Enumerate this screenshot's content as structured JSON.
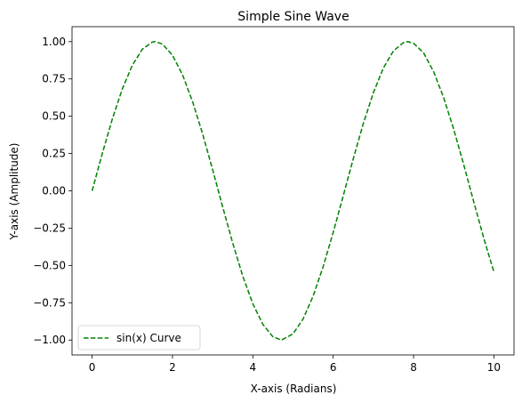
{
  "chart_data": {
    "type": "line",
    "title": "Simple Sine Wave",
    "xlabel": "X-axis (Radians)",
    "ylabel": "Y-axis (Amplitude)",
    "xlim": [
      -0.5,
      10.5
    ],
    "ylim": [
      -1.1,
      1.1
    ],
    "x_ticks": [
      0,
      2,
      4,
      6,
      8,
      10
    ],
    "x_tick_labels": [
      "0",
      "2",
      "4",
      "6",
      "8",
      "10"
    ],
    "y_ticks": [
      -1.0,
      -0.75,
      -0.5,
      -0.25,
      0.0,
      0.25,
      0.5,
      0.75,
      1.0
    ],
    "y_tick_labels": [
      "−1.00",
      "−0.75",
      "−0.50",
      "−0.25",
      "0.00",
      "0.25",
      "0.50",
      "0.75",
      "1.00"
    ],
    "grid": false,
    "legend_position": "lower-left",
    "series": [
      {
        "name": "sin(x) Curve",
        "color": "#008000",
        "line_style": "dashed",
        "x": [
          0,
          0.25,
          0.5,
          0.75,
          1.0,
          1.25,
          1.5,
          1.5708,
          1.75,
          2.0,
          2.25,
          2.5,
          2.75,
          3.0,
          3.25,
          3.5,
          3.75,
          4.0,
          4.25,
          4.5,
          4.7124,
          5.0,
          5.25,
          5.5,
          5.75,
          6.0,
          6.25,
          6.5,
          6.75,
          7.0,
          7.25,
          7.5,
          7.75,
          7.854,
          8.0,
          8.25,
          8.5,
          8.75,
          9.0,
          9.25,
          9.5,
          9.75,
          10.0
        ],
        "y": [
          0.0,
          0.247,
          0.479,
          0.682,
          0.841,
          0.949,
          0.997,
          1.0,
          0.984,
          0.909,
          0.778,
          0.598,
          0.382,
          0.141,
          -0.108,
          -0.351,
          -0.572,
          -0.757,
          -0.895,
          -0.978,
          -1.0,
          -0.959,
          -0.859,
          -0.706,
          -0.508,
          -0.279,
          -0.033,
          0.215,
          0.451,
          0.657,
          0.824,
          0.938,
          0.994,
          1.0,
          0.989,
          0.925,
          0.798,
          0.624,
          0.412,
          0.174,
          -0.075,
          -0.319,
          -0.544
        ]
      }
    ]
  }
}
